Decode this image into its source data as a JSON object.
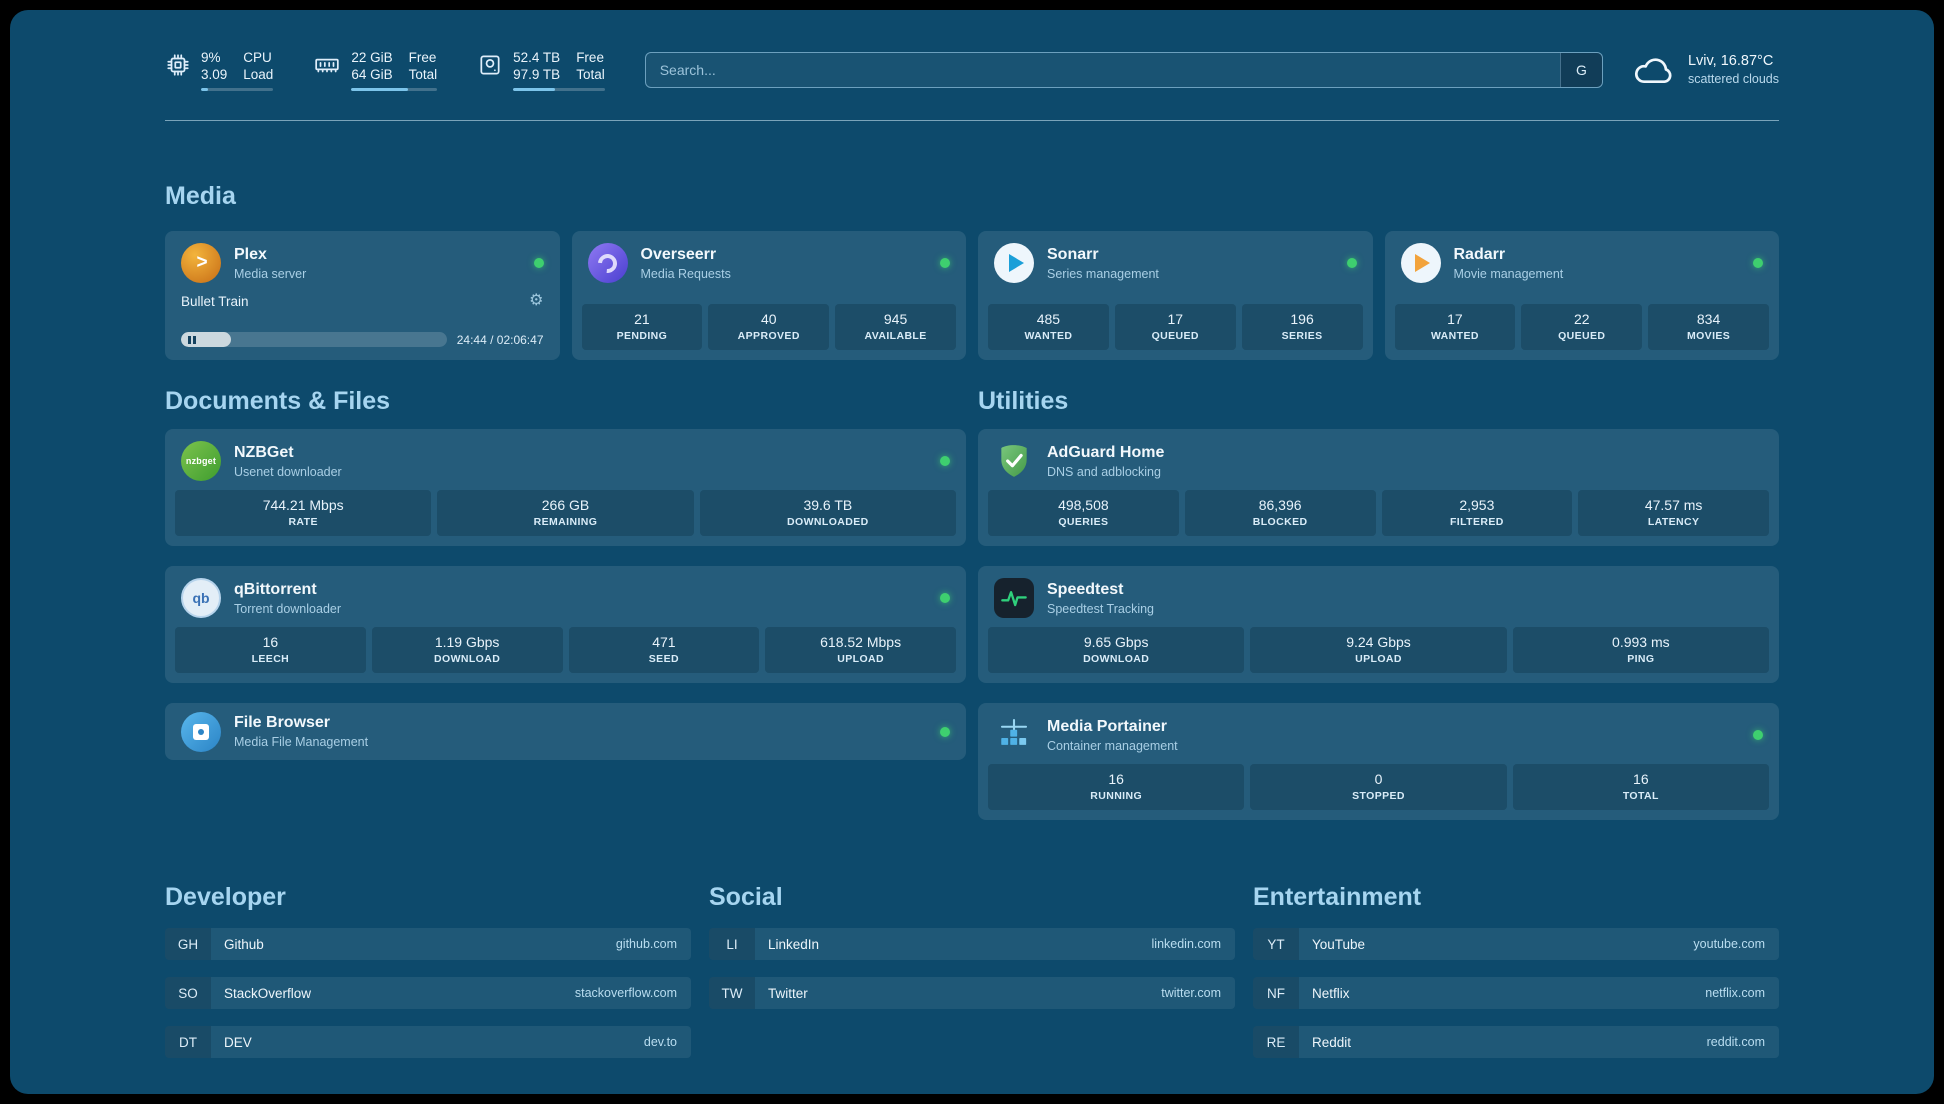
{
  "colors": {
    "accent": "#7cc4ea",
    "status_green": "#3ecf6f",
    "background": "#0d4a6c"
  },
  "topbar": {
    "cpu": {
      "value": "9%",
      "sub": "3.09",
      "label": "CPU",
      "sublabel": "Load",
      "fill": 9
    },
    "ram": {
      "value": "22 GiB",
      "sub": "64 GiB",
      "label": "Free",
      "sublabel": "Total",
      "fill": 66
    },
    "disk": {
      "value": "52.4 TB",
      "sub": "97.9 TB",
      "label": "Free",
      "sublabel": "Total",
      "fill": 46
    },
    "search": {
      "placeholder": "Search...",
      "button": "G"
    },
    "weather": {
      "location": "Lviv, 16.87°C",
      "condition": "scattered clouds"
    }
  },
  "sections": {
    "media": "Media",
    "documents": "Documents & Files",
    "utilities": "Utilities",
    "developer": "Developer",
    "social": "Social",
    "entertainment": "Entertainment"
  },
  "services": {
    "plex": {
      "name": "Plex",
      "desc": "Media server",
      "now_playing": "Bullet Train",
      "time": "24:44 / 02:06:47",
      "progress": 19
    },
    "overseerr": {
      "name": "Overseerr",
      "desc": "Media Requests",
      "stats": [
        {
          "value": "21",
          "label": "PENDING"
        },
        {
          "value": "40",
          "label": "APPROVED"
        },
        {
          "value": "945",
          "label": "AVAILABLE"
        }
      ]
    },
    "sonarr": {
      "name": "Sonarr",
      "desc": "Series management",
      "stats": [
        {
          "value": "485",
          "label": "WANTED"
        },
        {
          "value": "17",
          "label": "QUEUED"
        },
        {
          "value": "196",
          "label": "SERIES"
        }
      ]
    },
    "radarr": {
      "name": "Radarr",
      "desc": "Movie management",
      "stats": [
        {
          "value": "17",
          "label": "WANTED"
        },
        {
          "value": "22",
          "label": "QUEUED"
        },
        {
          "value": "834",
          "label": "MOVIES"
        }
      ]
    },
    "nzbget": {
      "name": "NZBGet",
      "desc": "Usenet downloader",
      "icon_text": "nzbget",
      "stats": [
        {
          "value": "744.21 Mbps",
          "label": "RATE"
        },
        {
          "value": "266 GB",
          "label": "REMAINING"
        },
        {
          "value": "39.6 TB",
          "label": "DOWNLOADED"
        }
      ]
    },
    "qbittorrent": {
      "name": "qBittorrent",
      "desc": "Torrent downloader",
      "icon_text": "qb",
      "stats": [
        {
          "value": "16",
          "label": "LEECH"
        },
        {
          "value": "1.19 Gbps",
          "label": "DOWNLOAD"
        },
        {
          "value": "471",
          "label": "SEED"
        },
        {
          "value": "618.52 Mbps",
          "label": "UPLOAD"
        }
      ]
    },
    "filebrowser": {
      "name": "File Browser",
      "desc": "Media File Management"
    },
    "adguard": {
      "name": "AdGuard Home",
      "desc": "DNS and adblocking",
      "stats": [
        {
          "value": "498,508",
          "label": "QUERIES"
        },
        {
          "value": "86,396",
          "label": "BLOCKED"
        },
        {
          "value": "2,953",
          "label": "FILTERED"
        },
        {
          "value": "47.57 ms",
          "label": "LATENCY"
        }
      ]
    },
    "speedtest": {
      "name": "Speedtest",
      "desc": "Speedtest Tracking",
      "stats": [
        {
          "value": "9.65 Gbps",
          "label": "DOWNLOAD"
        },
        {
          "value": "9.24 Gbps",
          "label": "UPLOAD"
        },
        {
          "value": "0.993 ms",
          "label": "PING"
        }
      ]
    },
    "portainer": {
      "name": "Media Portainer",
      "desc": "Container management",
      "stats": [
        {
          "value": "16",
          "label": "RUNNING"
        },
        {
          "value": "0",
          "label": "STOPPED"
        },
        {
          "value": "16",
          "label": "TOTAL"
        }
      ]
    }
  },
  "bookmarks": {
    "developer": [
      {
        "abbr": "GH",
        "name": "Github",
        "url": "github.com"
      },
      {
        "abbr": "SO",
        "name": "StackOverflow",
        "url": "stackoverflow.com"
      },
      {
        "abbr": "DT",
        "name": "DEV",
        "url": "dev.to"
      }
    ],
    "social": [
      {
        "abbr": "LI",
        "name": "LinkedIn",
        "url": "linkedin.com"
      },
      {
        "abbr": "TW",
        "name": "Twitter",
        "url": "twitter.com"
      }
    ],
    "entertainment": [
      {
        "abbr": "YT",
        "name": "YouTube",
        "url": "youtube.com"
      },
      {
        "abbr": "NF",
        "name": "Netflix",
        "url": "netflix.com"
      },
      {
        "abbr": "RE",
        "name": "Reddit",
        "url": "reddit.com"
      }
    ]
  }
}
